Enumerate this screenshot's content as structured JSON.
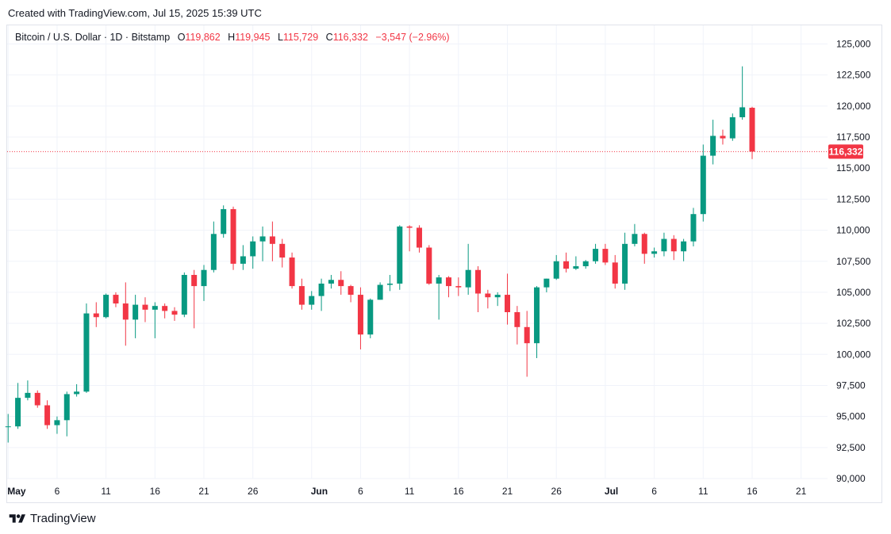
{
  "header": {
    "created": "Created with TradingView.com, Jul 15, 2025 15:39 UTC"
  },
  "legend": {
    "symbol": "Bitcoin / U.S. Dollar · 1D · Bitstamp",
    "open_label": "O",
    "open": "119,862",
    "high_label": "H",
    "high": "119,945",
    "low_label": "L",
    "low": "115,729",
    "close_label": "C",
    "close": "116,332",
    "change": "−3,547 (−2.96%)"
  },
  "colors": {
    "up": "#089981",
    "down": "#f23645",
    "grid": "#f0f3fa",
    "axis_text": "#131722"
  },
  "footer": {
    "brand": "TradingView",
    "logo_icon": "tradingview-logo-icon"
  },
  "chart_data": {
    "type": "candlestick",
    "title": "Bitcoin / U.S. Dollar · 1D · Bitstamp",
    "y_range": [
      90000,
      126500
    ],
    "y_ticks": [
      90000,
      92500,
      95000,
      97500,
      100000,
      102500,
      105000,
      107500,
      110000,
      112500,
      115000,
      117500,
      120000,
      122500,
      125000
    ],
    "y_tick_labels": [
      "90,000",
      "92,500",
      "95,000",
      "97,500",
      "100,000",
      "102,500",
      "105,000",
      "107,500",
      "110,000",
      "112,500",
      "115,000",
      "117,500",
      "120,000",
      "122,500",
      "125,000"
    ],
    "x_range": [
      -0.1,
      83.7
    ],
    "x_ticks": [
      {
        "day": 0,
        "label": "May",
        "bold": true
      },
      {
        "day": 5,
        "label": "6",
        "bold": false
      },
      {
        "day": 10,
        "label": "11",
        "bold": false
      },
      {
        "day": 15,
        "label": "16",
        "bold": false
      },
      {
        "day": 20,
        "label": "21",
        "bold": false
      },
      {
        "day": 25,
        "label": "26",
        "bold": false
      },
      {
        "day": 31,
        "label": "Jun",
        "bold": true
      },
      {
        "day": 36,
        "label": "6",
        "bold": false
      },
      {
        "day": 41,
        "label": "11",
        "bold": false
      },
      {
        "day": 46,
        "label": "16",
        "bold": false
      },
      {
        "day": 51,
        "label": "21",
        "bold": false
      },
      {
        "day": 56,
        "label": "26",
        "bold": false
      },
      {
        "day": 61,
        "label": "Jul",
        "bold": true
      },
      {
        "day": 66,
        "label": "6",
        "bold": false
      },
      {
        "day": 71,
        "label": "11",
        "bold": false
      },
      {
        "day": 76,
        "label": "16",
        "bold": false
      },
      {
        "day": 81,
        "label": "21",
        "bold": false
      }
    ],
    "last_price": 116332,
    "last_price_label": "116,332",
    "candles": [
      {
        "o": 94200,
        "h": 95200,
        "l": 92900,
        "c": 94200
      },
      {
        "o": 94200,
        "h": 97700,
        "l": 94000,
        "c": 96500
      },
      {
        "o": 96500,
        "h": 97900,
        "l": 96300,
        "c": 96900
      },
      {
        "o": 96900,
        "h": 97100,
        "l": 95700,
        "c": 95900
      },
      {
        "o": 95900,
        "h": 96300,
        "l": 94000,
        "c": 94300
      },
      {
        "o": 94300,
        "h": 95000,
        "l": 93600,
        "c": 94700
      },
      {
        "o": 94700,
        "h": 97000,
        "l": 93400,
        "c": 96800
      },
      {
        "o": 96800,
        "h": 97600,
        "l": 96600,
        "c": 97000
      },
      {
        "o": 97000,
        "h": 104100,
        "l": 96900,
        "c": 103300
      },
      {
        "o": 103300,
        "h": 104200,
        "l": 102200,
        "c": 103000
      },
      {
        "o": 103000,
        "h": 104900,
        "l": 102900,
        "c": 104800
      },
      {
        "o": 104800,
        "h": 105000,
        "l": 103800,
        "c": 104100
      },
      {
        "o": 104100,
        "h": 105800,
        "l": 100700,
        "c": 102800
      },
      {
        "o": 102800,
        "h": 104800,
        "l": 101300,
        "c": 104000
      },
      {
        "o": 104000,
        "h": 104600,
        "l": 102600,
        "c": 103600
      },
      {
        "o": 103600,
        "h": 104200,
        "l": 101300,
        "c": 103900
      },
      {
        "o": 103900,
        "h": 104100,
        "l": 102900,
        "c": 103500
      },
      {
        "o": 103500,
        "h": 103800,
        "l": 102700,
        "c": 103200
      },
      {
        "o": 103200,
        "h": 106600,
        "l": 103000,
        "c": 106400
      },
      {
        "o": 106400,
        "h": 106800,
        "l": 102100,
        "c": 105500
      },
      {
        "o": 105500,
        "h": 107200,
        "l": 104300,
        "c": 106800
      },
      {
        "o": 106800,
        "h": 110700,
        "l": 106600,
        "c": 109700
      },
      {
        "o": 109700,
        "h": 112000,
        "l": 109400,
        "c": 111700
      },
      {
        "o": 111700,
        "h": 111900,
        "l": 106800,
        "c": 107300
      },
      {
        "o": 107300,
        "h": 108800,
        "l": 106800,
        "c": 107900
      },
      {
        "o": 107900,
        "h": 109500,
        "l": 106900,
        "c": 109100
      },
      {
        "o": 109100,
        "h": 110300,
        "l": 107500,
        "c": 109500
      },
      {
        "o": 109500,
        "h": 110700,
        "l": 107500,
        "c": 108900
      },
      {
        "o": 108900,
        "h": 109300,
        "l": 107000,
        "c": 107800
      },
      {
        "o": 107800,
        "h": 108200,
        "l": 105300,
        "c": 105500
      },
      {
        "o": 105500,
        "h": 106100,
        "l": 103600,
        "c": 104000
      },
      {
        "o": 104000,
        "h": 105100,
        "l": 103600,
        "c": 104700
      },
      {
        "o": 104700,
        "h": 106100,
        "l": 103500,
        "c": 105700
      },
      {
        "o": 105700,
        "h": 106400,
        "l": 105300,
        "c": 106000
      },
      {
        "o": 106000,
        "h": 106700,
        "l": 104800,
        "c": 105500
      },
      {
        "o": 105500,
        "h": 105600,
        "l": 104200,
        "c": 104800
      },
      {
        "o": 104800,
        "h": 105400,
        "l": 100400,
        "c": 101600
      },
      {
        "o": 101600,
        "h": 104500,
        "l": 101300,
        "c": 104400
      },
      {
        "o": 104400,
        "h": 105800,
        "l": 104400,
        "c": 105600
      },
      {
        "o": 105600,
        "h": 106400,
        "l": 105100,
        "c": 105700
      },
      {
        "o": 105700,
        "h": 110400,
        "l": 105200,
        "c": 110300
      },
      {
        "o": 110300,
        "h": 110400,
        "l": 108300,
        "c": 110200
      },
      {
        "o": 110200,
        "h": 110400,
        "l": 108200,
        "c": 108600
      },
      {
        "o": 108600,
        "h": 108800,
        "l": 105600,
        "c": 105700
      },
      {
        "o": 105700,
        "h": 106400,
        "l": 102800,
        "c": 106200
      },
      {
        "o": 106200,
        "h": 106300,
        "l": 104600,
        "c": 105500
      },
      {
        "o": 105500,
        "h": 106200,
        "l": 104700,
        "c": 105400
      },
      {
        "o": 105400,
        "h": 108900,
        "l": 104800,
        "c": 106800
      },
      {
        "o": 106800,
        "h": 107100,
        "l": 103400,
        "c": 104900
      },
      {
        "o": 104900,
        "h": 105200,
        "l": 103700,
        "c": 104600
      },
      {
        "o": 104600,
        "h": 105000,
        "l": 103900,
        "c": 104800
      },
      {
        "o": 104800,
        "h": 106500,
        "l": 102400,
        "c": 103400
      },
      {
        "o": 103400,
        "h": 103900,
        "l": 100800,
        "c": 102200
      },
      {
        "o": 102200,
        "h": 103500,
        "l": 98200,
        "c": 100900
      },
      {
        "o": 100900,
        "h": 105500,
        "l": 99700,
        "c": 105400
      },
      {
        "o": 105400,
        "h": 106100,
        "l": 105000,
        "c": 106100
      },
      {
        "o": 106100,
        "h": 108000,
        "l": 106000,
        "c": 107500
      },
      {
        "o": 107500,
        "h": 108200,
        "l": 106600,
        "c": 106900
      },
      {
        "o": 106900,
        "h": 107900,
        "l": 106800,
        "c": 107100
      },
      {
        "o": 107100,
        "h": 107600,
        "l": 106900,
        "c": 107500
      },
      {
        "o": 107500,
        "h": 108900,
        "l": 107300,
        "c": 108500
      },
      {
        "o": 108500,
        "h": 108900,
        "l": 107200,
        "c": 107400
      },
      {
        "o": 107400,
        "h": 108000,
        "l": 105300,
        "c": 105700
      },
      {
        "o": 105700,
        "h": 109800,
        "l": 105200,
        "c": 108900
      },
      {
        "o": 108900,
        "h": 110500,
        "l": 108700,
        "c": 109700
      },
      {
        "o": 109700,
        "h": 109800,
        "l": 107300,
        "c": 108100
      },
      {
        "o": 108100,
        "h": 108600,
        "l": 107800,
        "c": 108300
      },
      {
        "o": 108300,
        "h": 109800,
        "l": 107900,
        "c": 109300
      },
      {
        "o": 109300,
        "h": 109600,
        "l": 107600,
        "c": 108300
      },
      {
        "o": 108300,
        "h": 109300,
        "l": 107500,
        "c": 109100
      },
      {
        "o": 109100,
        "h": 111800,
        "l": 108700,
        "c": 111300
      },
      {
        "o": 111300,
        "h": 116900,
        "l": 110700,
        "c": 116000
      },
      {
        "o": 116000,
        "h": 118900,
        "l": 115300,
        "c": 117600
      },
      {
        "o": 117600,
        "h": 118100,
        "l": 116900,
        "c": 117400
      },
      {
        "o": 117400,
        "h": 119400,
        "l": 117200,
        "c": 119100
      },
      {
        "o": 119100,
        "h": 123200,
        "l": 118900,
        "c": 119900
      },
      {
        "o": 119862,
        "h": 119945,
        "l": 115729,
        "c": 116332
      }
    ]
  }
}
